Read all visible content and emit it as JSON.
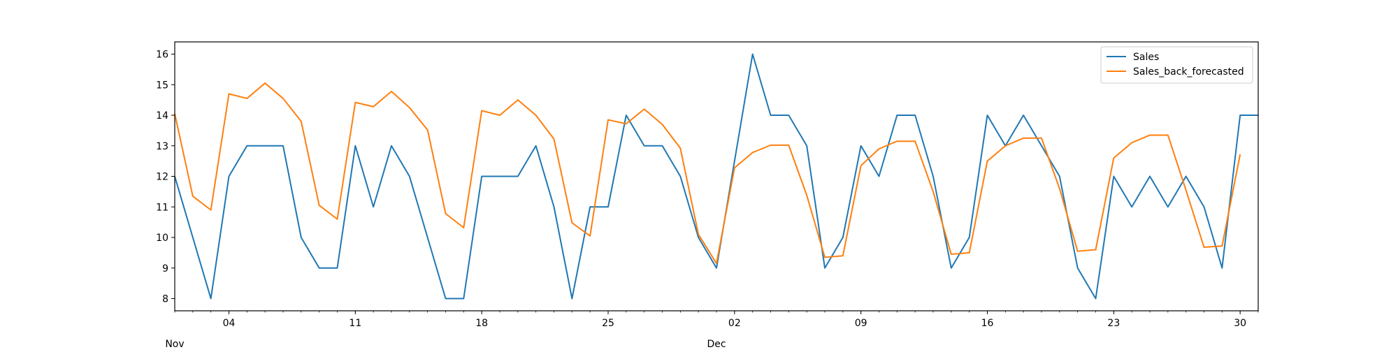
{
  "chart_data": {
    "type": "line",
    "title": "",
    "xlabel": "",
    "ylabel": "",
    "x_start": "2018-11-01",
    "x": [
      "2018-11-01",
      "2018-11-02",
      "2018-11-03",
      "2018-11-04",
      "2018-11-05",
      "2018-11-06",
      "2018-11-07",
      "2018-11-08",
      "2018-11-09",
      "2018-11-10",
      "2018-11-11",
      "2018-11-12",
      "2018-11-13",
      "2018-11-14",
      "2018-11-15",
      "2018-11-16",
      "2018-11-17",
      "2018-11-18",
      "2018-11-19",
      "2018-11-20",
      "2018-11-21",
      "2018-11-22",
      "2018-11-23",
      "2018-11-24",
      "2018-11-25",
      "2018-11-26",
      "2018-11-27",
      "2018-11-28",
      "2018-11-29",
      "2018-11-30",
      "2018-12-01",
      "2018-12-02",
      "2018-12-03",
      "2018-12-04",
      "2018-12-05",
      "2018-12-06",
      "2018-12-07",
      "2018-12-08",
      "2018-12-09",
      "2018-12-10",
      "2018-12-11",
      "2018-12-12",
      "2018-12-13",
      "2018-12-14",
      "2018-12-15",
      "2018-12-16",
      "2018-12-17",
      "2018-12-18",
      "2018-12-19",
      "2018-12-20",
      "2018-12-21",
      "2018-12-22",
      "2018-12-23",
      "2018-12-24",
      "2018-12-25",
      "2018-12-26",
      "2018-12-27",
      "2018-12-28",
      "2018-12-29",
      "2018-12-30",
      "2018-12-31"
    ],
    "series": [
      {
        "name": "Sales",
        "color": "#1f77b4",
        "values": [
          12,
          10,
          8,
          12,
          13,
          13,
          13,
          10,
          9,
          9,
          13,
          11,
          13,
          12,
          10,
          8,
          8,
          12,
          12,
          12,
          13,
          11,
          8,
          11,
          11,
          14,
          13,
          13,
          12,
          10,
          9,
          12.5,
          16,
          14,
          14,
          13,
          9,
          10,
          13,
          12,
          14,
          14,
          12,
          9,
          10,
          14,
          13,
          14,
          13,
          12,
          9,
          8,
          12,
          11,
          12,
          11,
          12,
          11,
          9,
          14,
          14
        ]
      },
      {
        "name": "Sales_back_forecasted",
        "color": "#ff7f0e",
        "values": [
          14.05,
          11.35,
          10.9,
          14.7,
          14.55,
          15.05,
          14.55,
          13.8,
          11.05,
          10.6,
          14.42,
          14.28,
          14.78,
          14.25,
          13.52,
          10.78,
          10.32,
          14.15,
          14.0,
          14.5,
          14.0,
          13.22,
          10.48,
          10.05,
          13.85,
          13.72,
          14.2,
          13.7,
          12.92,
          10.1,
          9.15,
          12.28,
          12.78,
          13.02,
          13.02,
          11.38,
          9.35,
          9.4,
          12.35,
          12.9,
          13.15,
          13.15,
          11.5,
          9.45,
          9.5,
          12.5,
          13.0,
          13.25,
          13.25,
          11.6,
          9.55,
          9.6,
          12.6,
          13.1,
          13.35,
          13.35,
          11.55,
          9.68,
          9.72,
          12.72,
          null
        ]
      }
    ],
    "xlim": [
      "2018-11-01",
      "2018-12-31"
    ],
    "ylim": [
      7.6,
      16.4
    ],
    "yticks": [
      8,
      9,
      10,
      11,
      12,
      13,
      14,
      15,
      16
    ],
    "xticks": [
      {
        "date": "2018-11-04",
        "label": "04"
      },
      {
        "date": "2018-11-11",
        "label": "11"
      },
      {
        "date": "2018-11-18",
        "label": "18"
      },
      {
        "date": "2018-11-25",
        "label": "25"
      },
      {
        "date": "2018-12-02",
        "label": "02"
      },
      {
        "date": "2018-12-09",
        "label": "09"
      },
      {
        "date": "2018-12-16",
        "label": "16"
      },
      {
        "date": "2018-12-23",
        "label": "23"
      },
      {
        "date": "2018-12-30",
        "label": "30"
      }
    ],
    "month_labels": [
      {
        "date": "2018-11-01",
        "label": "Nov"
      },
      {
        "date": "2018-12-01",
        "label": "Dec"
      }
    ],
    "grid": false,
    "legend_position": "top-right"
  }
}
